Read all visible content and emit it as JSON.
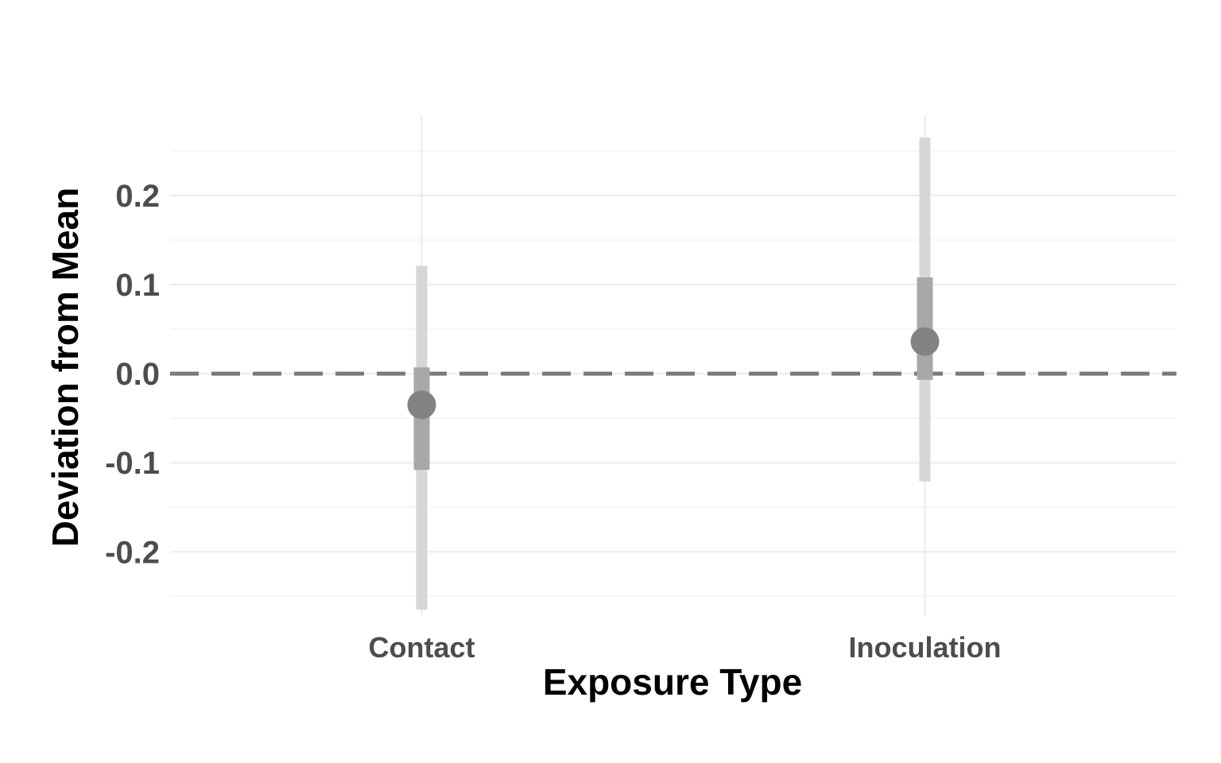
{
  "chart_data": {
    "type": "pointrange",
    "xlabel": "Exposure Type",
    "ylabel": "Deviation from Mean",
    "categories": [
      "Contact",
      "Inoculation"
    ],
    "estimates": [
      -0.035,
      0.036
    ],
    "inner_interval": [
      [
        -0.108,
        0.007
      ],
      [
        -0.007,
        0.108
      ]
    ],
    "outer_interval": [
      [
        -0.265,
        0.121
      ],
      [
        -0.121,
        0.265
      ]
    ],
    "ylim": [
      -0.272,
      0.29
    ],
    "yticks": [
      -0.2,
      -0.1,
      0.0,
      0.1,
      0.2
    ],
    "ytick_labels": [
      "-0.2",
      "-0.1",
      "0.0",
      "0.1",
      "0.2"
    ],
    "reference_line": 0.0,
    "grid": true,
    "colors": {
      "point": "#838383",
      "inner_interval": "#a8a8a8",
      "outer_interval": "#d6d6d6",
      "reference_line": "#7a7a7a",
      "grid_major": "#ebebeb",
      "grid_minor": "#f3f3f3"
    }
  }
}
